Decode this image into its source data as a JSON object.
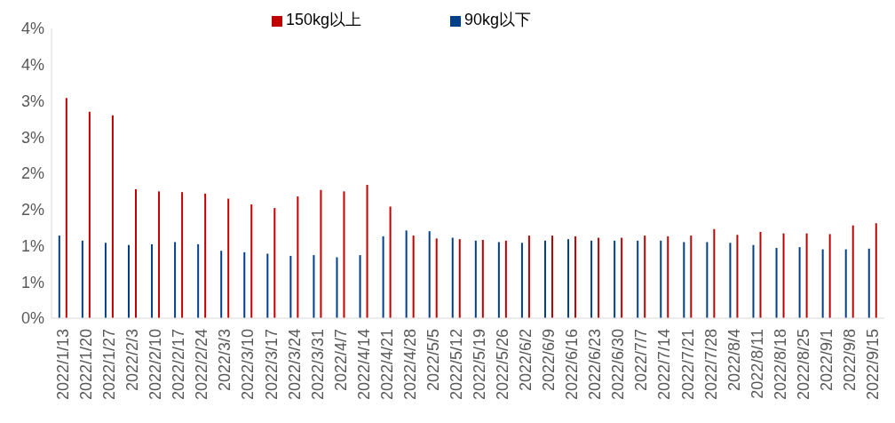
{
  "chart_data": {
    "type": "bar",
    "categories": [
      "2022/1/13",
      "2022/1/20",
      "2022/1/27",
      "2022/2/3",
      "2022/2/10",
      "2022/2/17",
      "2022/2/24",
      "2022/3/3",
      "2022/3/10",
      "2022/3/17",
      "2022/3/24",
      "2022/3/31",
      "2022/4/7",
      "2022/4/14",
      "2022/4/21",
      "2022/4/28",
      "2022/5/5",
      "2022/5/12",
      "2022/5/19",
      "2022/5/26",
      "2022/6/2",
      "2022/6/9",
      "2022/6/16",
      "2022/6/23",
      "2022/6/30",
      "2022/7/7",
      "2022/7/14",
      "2022/7/21",
      "2022/7/28",
      "2022/8/4",
      "2022/8/11",
      "2022/8/18",
      "2022/8/25",
      "2022/9/1",
      "2022/9/8",
      "2022/9/15"
    ],
    "series": [
      {
        "name": "90kg以下",
        "color": "#003f8a",
        "values": [
          1.14,
          1.07,
          1.04,
          1.01,
          1.02,
          1.05,
          1.02,
          0.93,
          0.91,
          0.89,
          0.86,
          0.87,
          0.84,
          0.87,
          1.13,
          1.21,
          1.2,
          1.11,
          1.07,
          1.05,
          1.04,
          1.07,
          1.09,
          1.07,
          1.07,
          1.07,
          1.07,
          1.05,
          1.05,
          1.04,
          1.01,
          0.97,
          0.98,
          0.95,
          0.95,
          0.96
        ]
      },
      {
        "name": "150kg以上",
        "color": "#c00000",
        "values": [
          3.04,
          2.85,
          2.8,
          1.78,
          1.75,
          1.74,
          1.72,
          1.65,
          1.57,
          1.52,
          1.68,
          1.77,
          1.75,
          1.84,
          1.54,
          1.14,
          1.1,
          1.09,
          1.08,
          1.07,
          1.14,
          1.14,
          1.13,
          1.11,
          1.11,
          1.14,
          1.13,
          1.14,
          1.23,
          1.15,
          1.19,
          1.17,
          1.17,
          1.16,
          1.28,
          1.31
        ]
      }
    ],
    "ylim": [
      0,
      4
    ],
    "yticks": [
      {
        "value": 0,
        "label": "0%"
      },
      {
        "value": 0.5,
        "label": "1%"
      },
      {
        "value": 1,
        "label": "1%"
      },
      {
        "value": 1.5,
        "label": "2%"
      },
      {
        "value": 2,
        "label": "2%"
      },
      {
        "value": 2.5,
        "label": "3%"
      },
      {
        "value": 3,
        "label": "3%"
      },
      {
        "value": 3.5,
        "label": "4%"
      },
      {
        "value": 4,
        "label": "4%"
      }
    ],
    "legend": "top",
    "grid": false
  }
}
